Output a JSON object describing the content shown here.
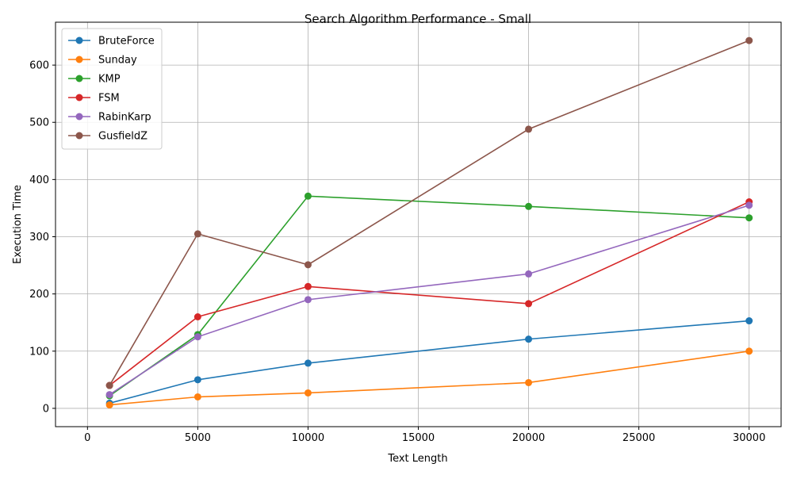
{
  "chart_data": {
    "type": "line",
    "title": "Search Algorithm Performance - Small",
    "xlabel": "Text Length",
    "ylabel": "Execution Time",
    "x": [
      1000,
      5000,
      10000,
      20000,
      30000
    ],
    "xlim": [
      -1450,
      31450
    ],
    "ylim": [
      -32,
      675
    ],
    "xticks": [
      0,
      5000,
      10000,
      15000,
      20000,
      25000,
      30000
    ],
    "yticks": [
      0,
      100,
      200,
      300,
      400,
      500,
      600
    ],
    "grid": true,
    "legend_position": "top-left",
    "series": [
      {
        "name": "BruteForce",
        "color": "#1f77b4",
        "values": [
          9,
          50,
          79,
          121,
          153
        ]
      },
      {
        "name": "Sunday",
        "color": "#ff7f0e",
        "values": [
          6,
          20,
          27,
          45,
          100
        ]
      },
      {
        "name": "KMP",
        "color": "#2ca02c",
        "values": [
          22,
          129,
          371,
          353,
          333
        ]
      },
      {
        "name": "FSM",
        "color": "#d62728",
        "values": [
          40,
          160,
          213,
          183,
          361
        ]
      },
      {
        "name": "RabinKarp",
        "color": "#9467bd",
        "values": [
          24,
          125,
          190,
          235,
          355
        ]
      },
      {
        "name": "GusfieldZ",
        "color": "#8c564b",
        "values": [
          40,
          305,
          251,
          488,
          643
        ]
      }
    ]
  }
}
